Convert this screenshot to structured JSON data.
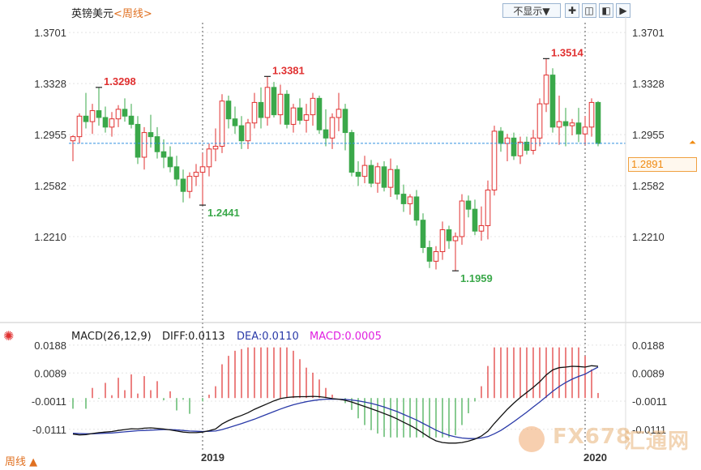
{
  "header": {
    "symbol": "英镑美元",
    "period_link": "<周线>",
    "hide_select": "不显示▼"
  },
  "colors": {
    "up": "#e03030",
    "down": "#3aa84a",
    "diff_line": "#111111",
    "dea_line": "#2a3aa8",
    "macd_label": "#e020e0",
    "current_price_line": "#3090e0",
    "current_price_box": "#f08a10",
    "grid": "#e4e4e4"
  },
  "macd_labels": {
    "name": "MACD(26,12,9)",
    "diff": "DIFF:0.0113",
    "dea": "DEA:0.0110",
    "macd": "MACD:0.0005"
  },
  "footer": {
    "period_tab": "周线 ▲"
  },
  "watermark": {
    "brand": "FX678",
    "cn": "汇通网"
  },
  "chart_data": [
    {
      "type": "candlestick",
      "title": "英镑美元 周线",
      "ylim": [
        1.16,
        1.382
      ],
      "y_ticks": [
        "1.3701",
        "1.3328",
        "1.2955",
        "1.2582",
        "1.2210"
      ],
      "x_tick_labels": [
        "2019",
        "2020"
      ],
      "current_price": "1.2891",
      "annotations": [
        {
          "label": "1.3298",
          "kind": "high"
        },
        {
          "label": "1.2441",
          "kind": "low"
        },
        {
          "label": "1.3381",
          "kind": "high"
        },
        {
          "label": "1.1959",
          "kind": "low"
        },
        {
          "label": "1.3514",
          "kind": "high"
        }
      ],
      "ohlc": [
        [
          1.291,
          1.295,
          1.276,
          1.294
        ],
        [
          1.294,
          1.311,
          1.289,
          1.309
        ],
        [
          1.309,
          1.326,
          1.3,
          1.305
        ],
        [
          1.305,
          1.318,
          1.296,
          1.313
        ],
        [
          1.313,
          1.33,
          1.302,
          1.308
        ],
        [
          1.308,
          1.316,
          1.297,
          1.301
        ],
        [
          1.301,
          1.312,
          1.294,
          1.307
        ],
        [
          1.307,
          1.317,
          1.301,
          1.314
        ],
        [
          1.314,
          1.322,
          1.305,
          1.309
        ],
        [
          1.309,
          1.318,
          1.3,
          1.303
        ],
        [
          1.303,
          1.309,
          1.274,
          1.279
        ],
        [
          1.279,
          1.301,
          1.27,
          1.297
        ],
        [
          1.297,
          1.31,
          1.286,
          1.294
        ],
        [
          1.294,
          1.301,
          1.278,
          1.283
        ],
        [
          1.283,
          1.292,
          1.271,
          1.279
        ],
        [
          1.279,
          1.287,
          1.268,
          1.272
        ],
        [
          1.272,
          1.28,
          1.258,
          1.263
        ],
        [
          1.263,
          1.27,
          1.246,
          1.254
        ],
        [
          1.254,
          1.268,
          1.249,
          1.265
        ],
        [
          1.265,
          1.274,
          1.258,
          1.268
        ],
        [
          1.268,
          1.282,
          1.244,
          1.272
        ],
        [
          1.272,
          1.289,
          1.265,
          1.285
        ],
        [
          1.285,
          1.3,
          1.276,
          1.287
        ],
        [
          1.287,
          1.325,
          1.282,
          1.32
        ],
        [
          1.32,
          1.324,
          1.3,
          1.307
        ],
        [
          1.307,
          1.316,
          1.296,
          1.302
        ],
        [
          1.302,
          1.309,
          1.285,
          1.291
        ],
        [
          1.291,
          1.307,
          1.285,
          1.304
        ],
        [
          1.304,
          1.326,
          1.3,
          1.319
        ],
        [
          1.319,
          1.33,
          1.3,
          1.308
        ],
        [
          1.308,
          1.338,
          1.302,
          1.33
        ],
        [
          1.33,
          1.334,
          1.308,
          1.31
        ],
        [
          1.31,
          1.332,
          1.303,
          1.325
        ],
        [
          1.325,
          1.328,
          1.3,
          1.303
        ],
        [
          1.303,
          1.318,
          1.297,
          1.315
        ],
        [
          1.315,
          1.322,
          1.303,
          1.306
        ],
        [
          1.306,
          1.318,
          1.297,
          1.31
        ],
        [
          1.31,
          1.326,
          1.302,
          1.322
        ],
        [
          1.322,
          1.324,
          1.296,
          1.299
        ],
        [
          1.299,
          1.314,
          1.287,
          1.293
        ],
        [
          1.293,
          1.311,
          1.285,
          1.308
        ],
        [
          1.308,
          1.326,
          1.298,
          1.314
        ],
        [
          1.314,
          1.318,
          1.284,
          1.297
        ],
        [
          1.297,
          1.299,
          1.265,
          1.268
        ],
        [
          1.268,
          1.276,
          1.258,
          1.265
        ],
        [
          1.265,
          1.28,
          1.26,
          1.273
        ],
        [
          1.273,
          1.277,
          1.257,
          1.26
        ],
        [
          1.26,
          1.275,
          1.253,
          1.272
        ],
        [
          1.272,
          1.276,
          1.254,
          1.257
        ],
        [
          1.257,
          1.278,
          1.25,
          1.27
        ],
        [
          1.27,
          1.273,
          1.248,
          1.252
        ],
        [
          1.252,
          1.259,
          1.239,
          1.245
        ],
        [
          1.245,
          1.252,
          1.237,
          1.25
        ],
        [
          1.25,
          1.255,
          1.229,
          1.233
        ],
        [
          1.233,
          1.238,
          1.209,
          1.213
        ],
        [
          1.213,
          1.218,
          1.198,
          1.203
        ],
        [
          1.203,
          1.214,
          1.197,
          1.21
        ],
        [
          1.21,
          1.232,
          1.204,
          1.226
        ],
        [
          1.226,
          1.229,
          1.212,
          1.218
        ],
        [
          1.218,
          1.224,
          1.196,
          1.221
        ],
        [
          1.221,
          1.252,
          1.215,
          1.247
        ],
        [
          1.247,
          1.251,
          1.235,
          1.241
        ],
        [
          1.241,
          1.248,
          1.222,
          1.225
        ],
        [
          1.225,
          1.243,
          1.218,
          1.229
        ],
        [
          1.229,
          1.262,
          1.219,
          1.255
        ],
        [
          1.255,
          1.302,
          1.251,
          1.298
        ],
        [
          1.298,
          1.301,
          1.283,
          1.289
        ],
        [
          1.289,
          1.296,
          1.276,
          1.293
        ],
        [
          1.293,
          1.297,
          1.277,
          1.28
        ],
        [
          1.28,
          1.294,
          1.274,
          1.29
        ],
        [
          1.29,
          1.294,
          1.281,
          1.284
        ],
        [
          1.284,
          1.299,
          1.281,
          1.293
        ],
        [
          1.293,
          1.322,
          1.287,
          1.318
        ],
        [
          1.318,
          1.351,
          1.312,
          1.339
        ],
        [
          1.339,
          1.344,
          1.297,
          1.301
        ],
        [
          1.301,
          1.324,
          1.288,
          1.305
        ],
        [
          1.305,
          1.315,
          1.287,
          1.302
        ],
        [
          1.302,
          1.307,
          1.295,
          1.304
        ],
        [
          1.304,
          1.315,
          1.29,
          1.296
        ],
        [
          1.296,
          1.309,
          1.288,
          1.301
        ],
        [
          1.301,
          1.322,
          1.294,
          1.319
        ],
        [
          1.319,
          1.32,
          1.287,
          1.289
        ]
      ]
    },
    {
      "type": "macd",
      "params": "26,12,9",
      "ylim": [
        -0.0175,
        0.0205
      ],
      "y_ticks": [
        "0.0188",
        "0.0089",
        "-0.0011",
        "-0.0111"
      ],
      "diff": [
        -0.0128,
        -0.0131,
        -0.013,
        -0.0126,
        -0.0123,
        -0.0121,
        -0.0119,
        -0.0115,
        -0.0112,
        -0.0109,
        -0.011,
        -0.0107,
        -0.0106,
        -0.0108,
        -0.011,
        -0.0113,
        -0.0117,
        -0.0121,
        -0.0123,
        -0.0123,
        -0.0121,
        -0.0116,
        -0.011,
        -0.0092,
        -0.008,
        -0.007,
        -0.0062,
        -0.0052,
        -0.004,
        -0.003,
        -0.002,
        -0.001,
        -0.0002,
        0.0002,
        0.0004,
        0.0005,
        0.0005,
        0.0006,
        0.0005,
        0.0002,
        -0.0002,
        -0.0004,
        -0.0008,
        -0.0014,
        -0.0022,
        -0.003,
        -0.0038,
        -0.0046,
        -0.0055,
        -0.0064,
        -0.0074,
        -0.0086,
        -0.0097,
        -0.011,
        -0.0125,
        -0.014,
        -0.0152,
        -0.0158,
        -0.016,
        -0.016,
        -0.0158,
        -0.0153,
        -0.0146,
        -0.0135,
        -0.0118,
        -0.009,
        -0.0065,
        -0.004,
        -0.0018,
        0.0002,
        0.002,
        0.0038,
        0.0058,
        0.0082,
        0.01,
        0.0108,
        0.011,
        0.0113,
        0.0112,
        0.011,
        0.0115,
        0.0113
      ],
      "dea": [
        -0.0125,
        -0.0126,
        -0.0127,
        -0.0127,
        -0.0126,
        -0.0125,
        -0.0124,
        -0.0122,
        -0.012,
        -0.0118,
        -0.0116,
        -0.0115,
        -0.0114,
        -0.0113,
        -0.0112,
        -0.0112,
        -0.0113,
        -0.0115,
        -0.0117,
        -0.0118,
        -0.0119,
        -0.0118,
        -0.0117,
        -0.0112,
        -0.0105,
        -0.0098,
        -0.0091,
        -0.0083,
        -0.0075,
        -0.0066,
        -0.0057,
        -0.0048,
        -0.0039,
        -0.0031,
        -0.0024,
        -0.0018,
        -0.0013,
        -0.0009,
        -0.0006,
        -0.0004,
        -0.0004,
        -0.0004,
        -0.0005,
        -0.0007,
        -0.001,
        -0.0014,
        -0.0019,
        -0.0025,
        -0.0032,
        -0.004,
        -0.0048,
        -0.0058,
        -0.0068,
        -0.0078,
        -0.009,
        -0.0102,
        -0.0114,
        -0.0124,
        -0.0132,
        -0.0138,
        -0.0142,
        -0.0144,
        -0.0144,
        -0.0142,
        -0.0137,
        -0.0127,
        -0.0115,
        -0.01,
        -0.0084,
        -0.0067,
        -0.005,
        -0.0032,
        -0.0014,
        0.0005,
        0.0024,
        0.0041,
        0.0055,
        0.0067,
        0.0077,
        0.0085,
        0.0098,
        0.011
      ]
    }
  ]
}
